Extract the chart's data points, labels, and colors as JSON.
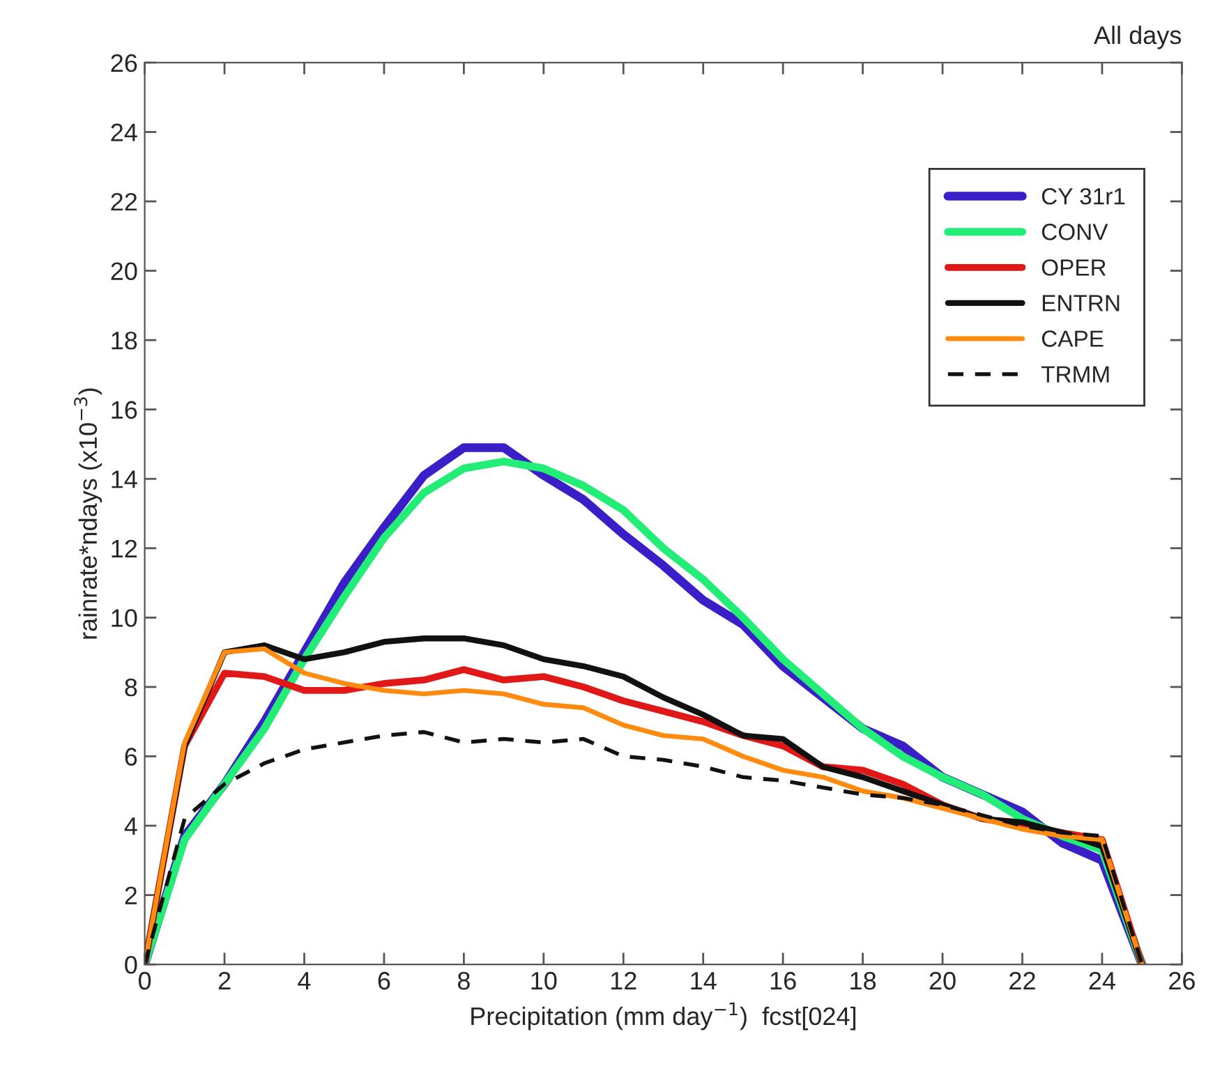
{
  "chart_data": {
    "type": "line",
    "xlabel": "Precipitation (mm day$^{−1}$)  fcst[024]",
    "ylabel": "rainrate*ndays (x10$^{−3}$)",
    "annotations": [
      "All days"
    ],
    "x": [
      0,
      1,
      2,
      3,
      4,
      5,
      6,
      7,
      8,
      9,
      10,
      11,
      12,
      13,
      14,
      15,
      16,
      17,
      18,
      19,
      20,
      21,
      22,
      23,
      24,
      25
    ],
    "series": [
      {
        "name": "CY 31r1",
        "color": "#3a1fc8",
        "line_style": "solid",
        "values": [
          0,
          3.7,
          5.2,
          7.0,
          9.0,
          11.0,
          12.6,
          14.1,
          14.9,
          14.9,
          14.1,
          13.4,
          12.4,
          11.5,
          10.5,
          9.8,
          8.6,
          7.7,
          6.8,
          6.3,
          5.4,
          4.9,
          4.4,
          3.5,
          3.0,
          0
        ]
      },
      {
        "name": "CONV",
        "color": "#22ee77",
        "line_style": "solid",
        "values": [
          0,
          3.6,
          5.2,
          6.8,
          8.8,
          10.6,
          12.3,
          13.6,
          14.3,
          14.5,
          14.3,
          13.8,
          13.1,
          12.0,
          11.1,
          10.0,
          8.8,
          7.8,
          6.8,
          6.0,
          5.4,
          4.9,
          4.2,
          3.7,
          3.3,
          0
        ]
      },
      {
        "name": "OPER",
        "color": "#e01818",
        "line_style": "solid",
        "values": [
          0,
          6.3,
          8.4,
          8.3,
          7.9,
          7.9,
          8.1,
          8.2,
          8.5,
          8.2,
          8.3,
          8.0,
          7.6,
          7.3,
          7.0,
          6.6,
          6.3,
          5.7,
          5.6,
          5.2,
          4.6,
          4.2,
          4.0,
          3.8,
          3.6,
          0
        ]
      },
      {
        "name": "ENTRN",
        "color": "#111111",
        "line_style": "solid",
        "values": [
          0,
          6.3,
          9.0,
          9.2,
          8.8,
          9.0,
          9.3,
          9.4,
          9.4,
          9.2,
          8.8,
          8.6,
          8.3,
          7.7,
          7.2,
          6.6,
          6.5,
          5.7,
          5.4,
          5.0,
          4.6,
          4.2,
          4.1,
          3.8,
          3.4,
          0
        ]
      },
      {
        "name": "CAPE",
        "color": "#ff8c10",
        "line_style": "solid",
        "values": [
          0,
          6.4,
          9.0,
          9.1,
          8.4,
          8.1,
          7.9,
          7.8,
          7.9,
          7.8,
          7.5,
          7.4,
          6.9,
          6.6,
          6.5,
          6.0,
          5.6,
          5.4,
          5.0,
          4.8,
          4.5,
          4.2,
          3.9,
          3.7,
          3.6,
          0
        ]
      },
      {
        "name": "TRMM",
        "color": "#111111",
        "line_style": "dashed",
        "values": [
          0,
          4.2,
          5.2,
          5.8,
          6.2,
          6.4,
          6.6,
          6.7,
          6.4,
          6.5,
          6.4,
          6.5,
          6.0,
          5.9,
          5.7,
          5.4,
          5.3,
          5.1,
          4.9,
          4.8,
          4.6,
          4.3,
          4.0,
          3.8,
          3.7,
          0
        ]
      }
    ],
    "xlim": [
      0,
      26
    ],
    "ylim": [
      0,
      26
    ],
    "xticks": [
      0,
      2,
      4,
      6,
      8,
      10,
      12,
      14,
      16,
      18,
      20,
      22,
      24,
      26
    ],
    "yticks": [
      0,
      2,
      4,
      6,
      8,
      10,
      12,
      14,
      16,
      18,
      20,
      22,
      24,
      26
    ],
    "grid": false,
    "legend": "top right",
    "marker": "none"
  }
}
